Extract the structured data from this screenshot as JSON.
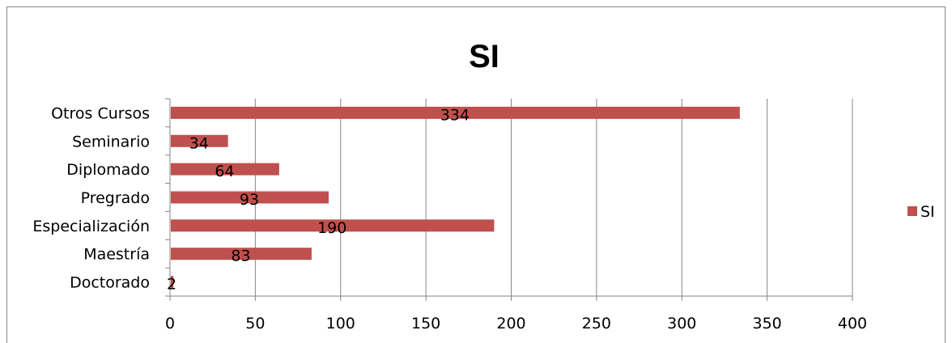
{
  "chart_data": {
    "type": "bar",
    "orientation": "horizontal",
    "title": "SI",
    "categories": [
      "Doctorado",
      "Maestría",
      "Especialización",
      "Pregrado",
      "Diplomado",
      "Seminario",
      "Otros Cursos"
    ],
    "series": [
      {
        "name": "SI",
        "values": [
          2,
          83,
          190,
          93,
          64,
          34,
          334
        ]
      }
    ],
    "xlim": [
      0,
      400
    ],
    "xticks": [
      "0",
      "50",
      "100",
      "150",
      "200",
      "250",
      "300",
      "350",
      "400"
    ],
    "xlabel": "",
    "ylabel": "",
    "grid": "vertical",
    "legend_position": "right",
    "data_labels": [
      "2",
      "83",
      "190",
      "93",
      "64",
      "34",
      "334"
    ],
    "colors": {
      "bar": "#C0504D",
      "grid": "#868686",
      "axis": "#868686"
    }
  }
}
